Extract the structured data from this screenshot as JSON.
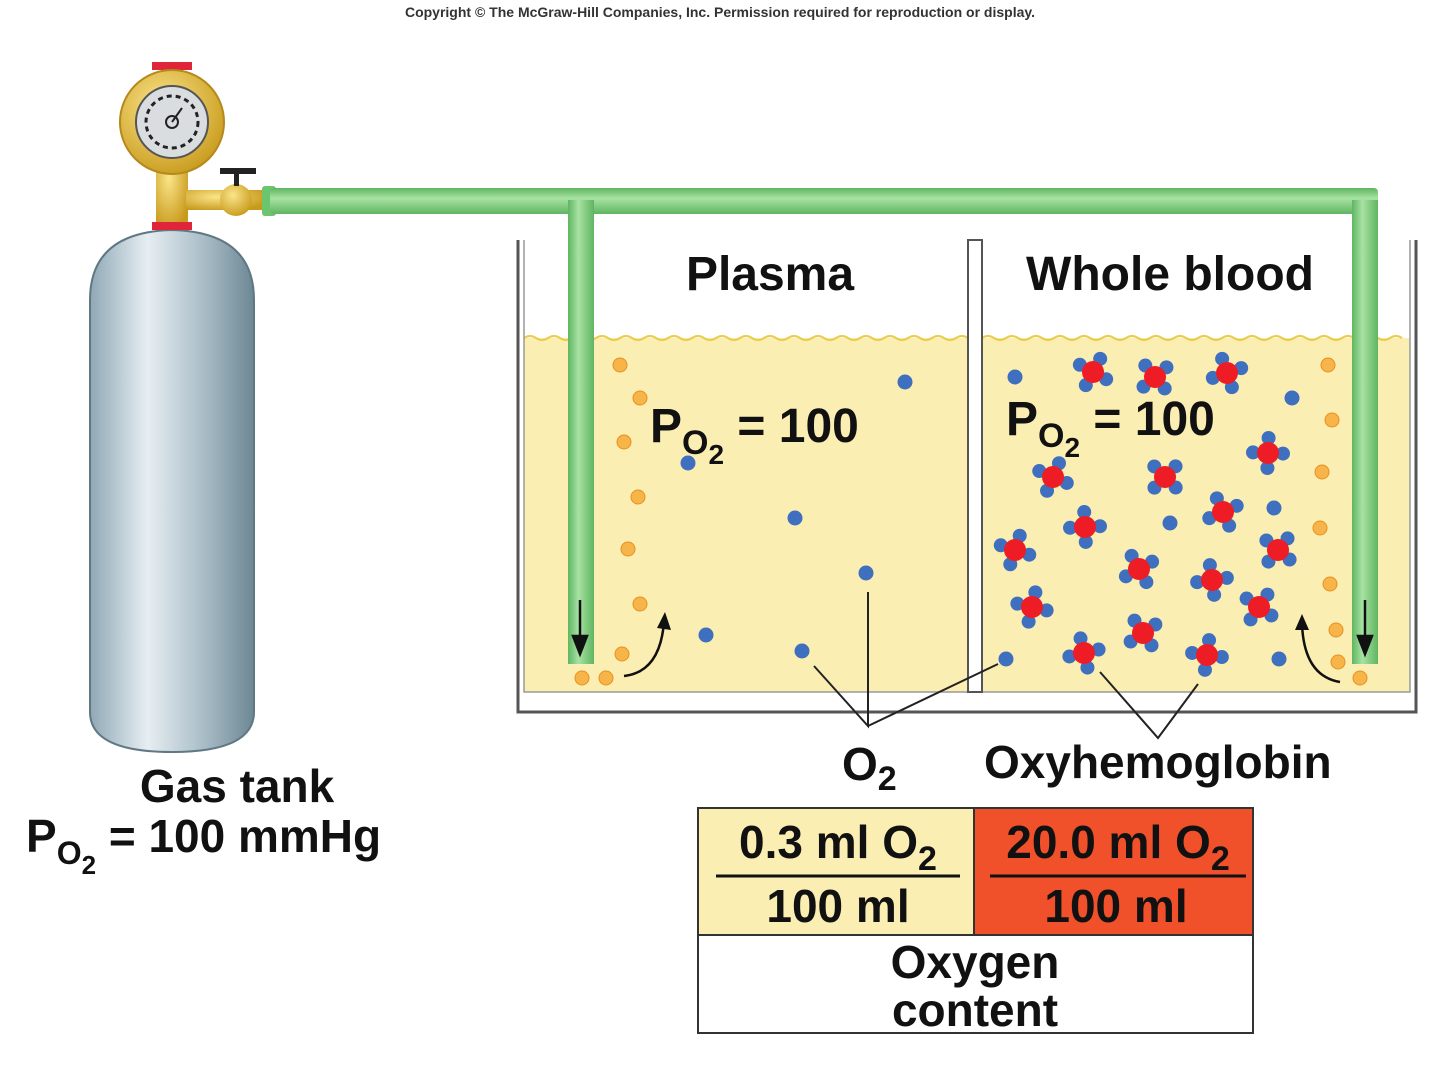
{
  "copyright": "Copyright © The McGraw-Hill Companies, Inc. Permission required for reproduction or display.",
  "plasma": {
    "title": "Plasma",
    "po2_p": "P",
    "po2_sub": "O",
    "po2_subsub": "2",
    "po2_value": " = 100"
  },
  "whole_blood": {
    "title": "Whole blood",
    "po2_p": "P",
    "po2_sub": "O",
    "po2_subsub": "2",
    "po2_value": " = 100"
  },
  "gas_tank": {
    "label": "Gas tank",
    "po2_p": "P",
    "po2_sub": "O",
    "po2_subsub": "2",
    "po2_value": " = 100 mmHg"
  },
  "legend": {
    "o2_main": "O",
    "o2_sub": "2",
    "oxyhemoglobin": "Oxyhemoglobin"
  },
  "table": {
    "plasma_numerator": "0.3 ml O",
    "plasma_numerator_sub": "2",
    "plasma_denominator": "100 ml",
    "blood_numerator": "20.0 ml O",
    "blood_numerator_sub": "2",
    "blood_denominator": "100 ml",
    "caption_line1": "Oxygen",
    "caption_line2": "content"
  },
  "colors": {
    "liquid": "#fbeeb3",
    "tube": "#7fcf80",
    "oxygen": "#3f6fbf",
    "heme": "#ee1c24",
    "bubble": "#f6a935",
    "blood_cell": "#f0502a",
    "plasma_cell": "#fbeeb3"
  }
}
